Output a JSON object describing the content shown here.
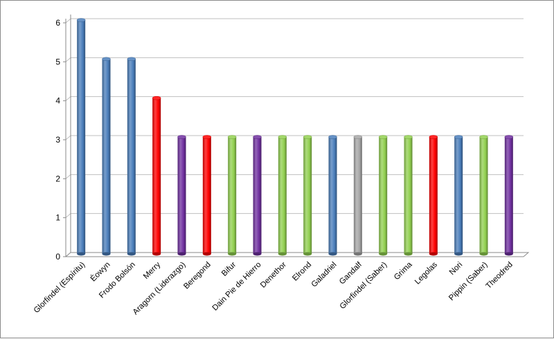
{
  "chart_data": {
    "type": "bar",
    "title": "",
    "xlabel": "",
    "ylabel": "",
    "ylim": [
      0,
      6
    ],
    "yticks": [
      "0",
      "1",
      "2",
      "3",
      "4",
      "5",
      "6"
    ],
    "grid": true,
    "legend": "none",
    "categories": [
      "Glorfindel (Espíritu)",
      "Éowyn",
      "Frodo Bolsón",
      "Merry",
      "Aragorn (Liderazgo)",
      "Beregond",
      "Bifur",
      "Dain Pie de Hierro",
      "Denethor",
      "Elrond",
      "Galadriel",
      "Gandalf",
      "Glorfindel (Saber)",
      "Grima",
      "Legolas",
      "Nori",
      "Pippin (Saber)",
      "Theodred"
    ],
    "values": [
      6,
      5,
      5,
      4,
      3,
      3,
      3,
      3,
      3,
      3,
      3,
      3,
      3,
      3,
      3,
      3,
      3,
      3
    ],
    "bar_colors": [
      "#4a7ebb",
      "#4a7ebb",
      "#4a7ebb",
      "#ff0000",
      "#7030a0",
      "#ff0000",
      "#92d050",
      "#7030a0",
      "#92d050",
      "#92d050",
      "#4a7ebb",
      "#a6a6a6",
      "#92d050",
      "#92d050",
      "#ff0000",
      "#4a7ebb",
      "#92d050",
      "#7030a0"
    ]
  }
}
